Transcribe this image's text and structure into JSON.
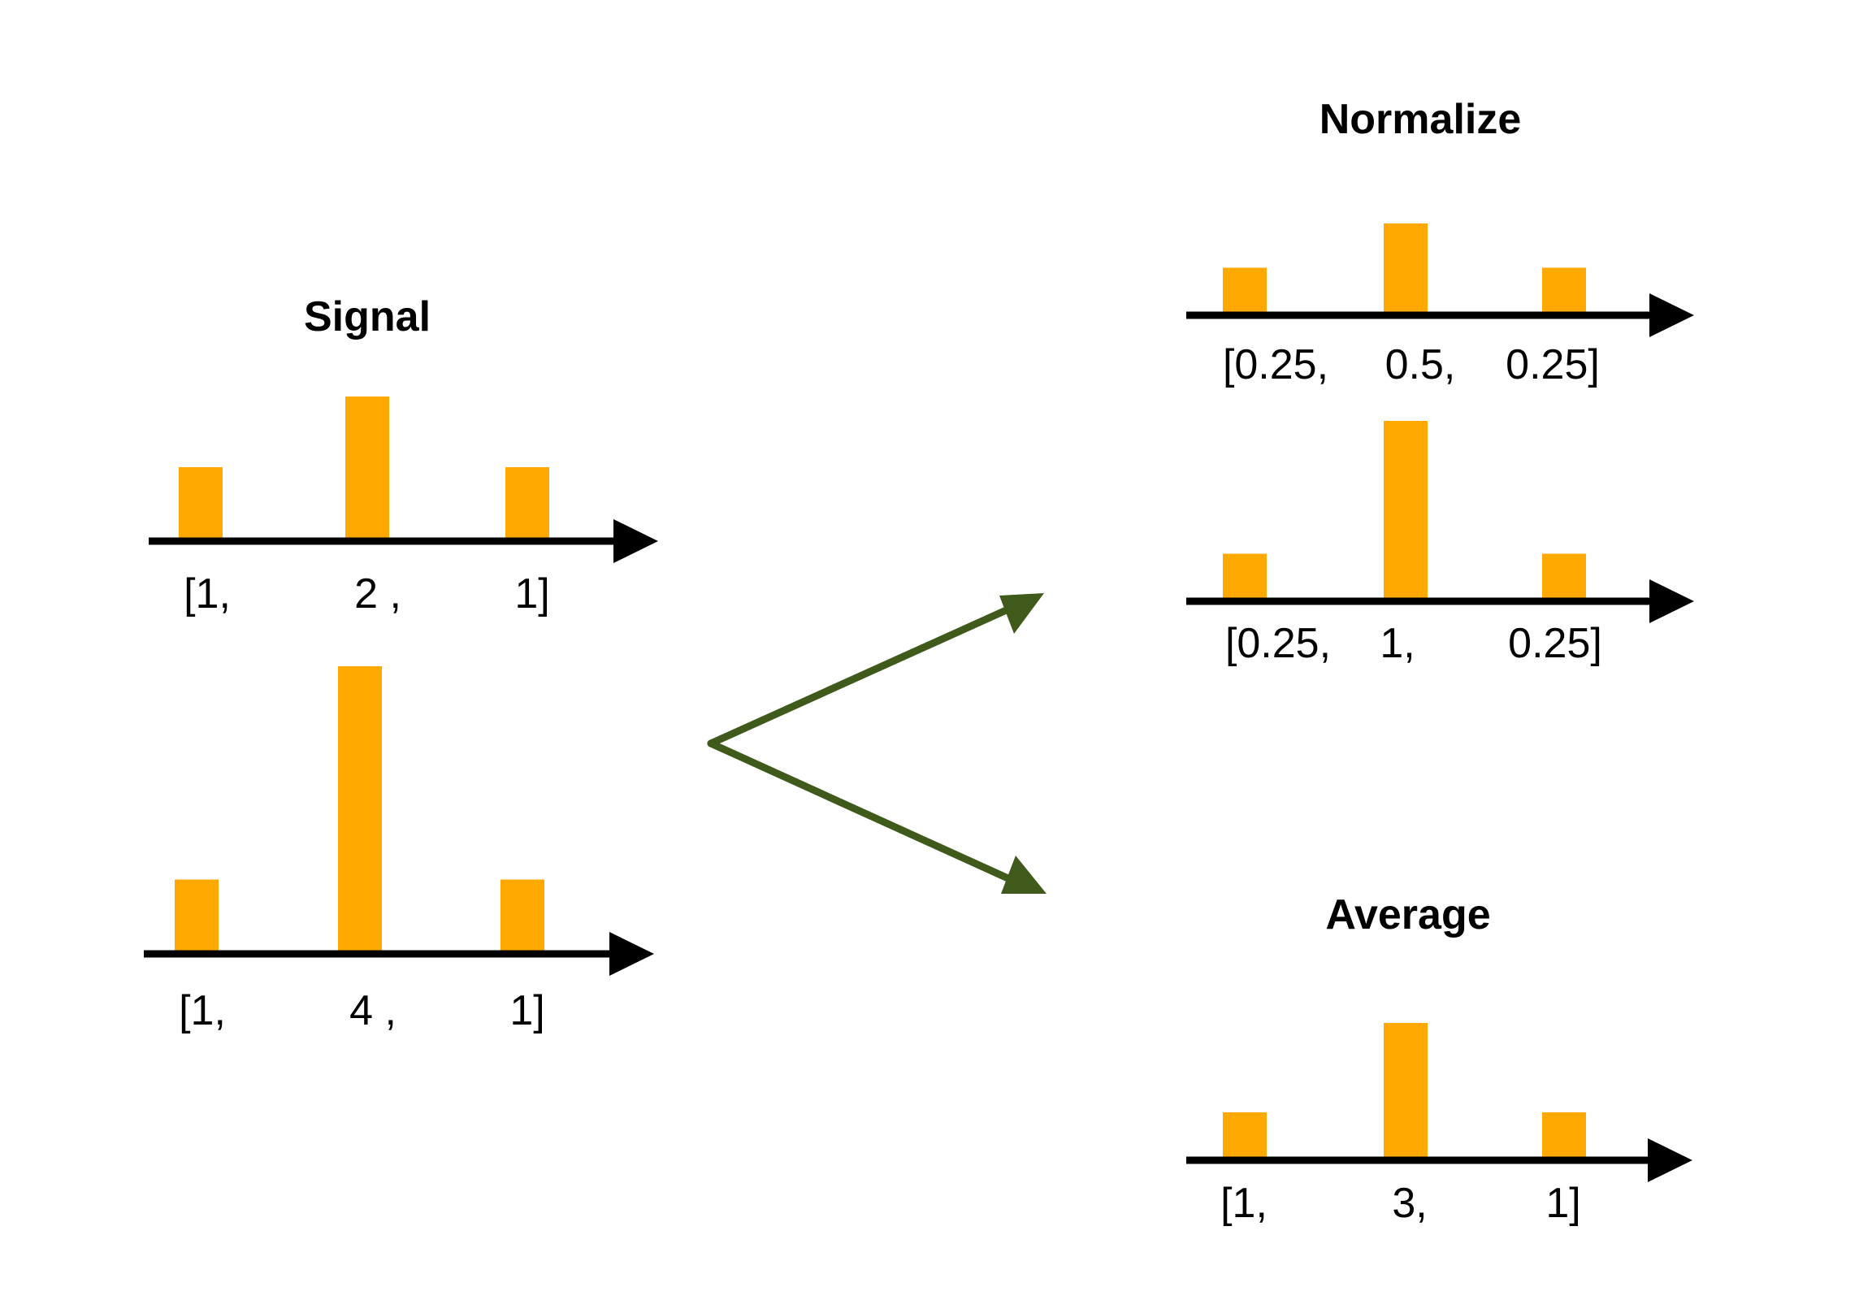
{
  "colors": {
    "bar": "#FFA800",
    "axis": "#000000",
    "arrow": "#3F5A1B",
    "text": "#000000",
    "background": "#FFFFFF"
  },
  "headings": {
    "signal": "Signal",
    "normalize": "Normalize",
    "average": "Average"
  },
  "plots": {
    "signal_top": {
      "values": [
        1,
        2,
        1
      ],
      "labels": [
        "[1,",
        "2 ,",
        "1]"
      ]
    },
    "signal_bottom": {
      "values": [
        1,
        4,
        1
      ],
      "labels": [
        "[1,",
        "4 ,",
        "1]"
      ]
    },
    "normalize_top": {
      "values": [
        0.25,
        0.5,
        0.25
      ],
      "labels": [
        "[0.25,",
        "0.5,",
        "0.25]"
      ]
    },
    "normalize_bottom": {
      "values": [
        0.25,
        1,
        0.25
      ],
      "labels": [
        "[0.25,",
        "1,",
        "0.25]"
      ]
    },
    "average": {
      "values": [
        1,
        3,
        1
      ],
      "labels": [
        "[1,",
        "3,",
        "1]"
      ]
    }
  },
  "connector": {
    "targets": [
      "normalize",
      "average"
    ]
  }
}
